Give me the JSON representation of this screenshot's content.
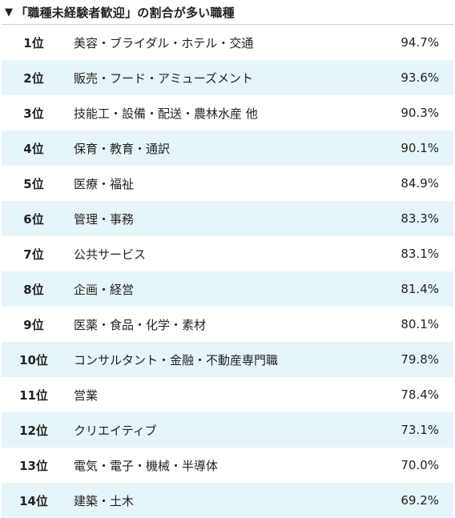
{
  "heading": {
    "marker": "▼",
    "text": "「職種未経験者歓迎」の割合が多い職種"
  },
  "rows": [
    {
      "rank": "1位",
      "label": "美容・ブライダル・ホテル・交通",
      "value": "94.7%"
    },
    {
      "rank": "2位",
      "label": "販売・フード・アミューズメント",
      "value": "93.6%"
    },
    {
      "rank": "3位",
      "label": "技能工・設備・配送・農林水産 他",
      "value": "90.3%"
    },
    {
      "rank": "4位",
      "label": "保育・教育・通訳",
      "value": "90.1%"
    },
    {
      "rank": "5位",
      "label": "医療・福祉",
      "value": "84.9%"
    },
    {
      "rank": "6位",
      "label": "管理・事務",
      "value": "83.3%"
    },
    {
      "rank": "7位",
      "label": "公共サービス",
      "value": "83.1%"
    },
    {
      "rank": "8位",
      "label": "企画・経営",
      "value": "81.4%"
    },
    {
      "rank": "9位",
      "label": "医薬・食品・化学・素材",
      "value": "80.1%"
    },
    {
      "rank": "10位",
      "label": "コンサルタント・金融・不動産専門職",
      "value": "79.8%"
    },
    {
      "rank": "11位",
      "label": "営業",
      "value": "78.4%"
    },
    {
      "rank": "12位",
      "label": "クリエイティブ",
      "value": "73.1%"
    },
    {
      "rank": "13位",
      "label": "電気・電子・機械・半導体",
      "value": "70.0%"
    },
    {
      "rank": "14位",
      "label": "建築・土木",
      "value": "69.2%"
    }
  ]
}
